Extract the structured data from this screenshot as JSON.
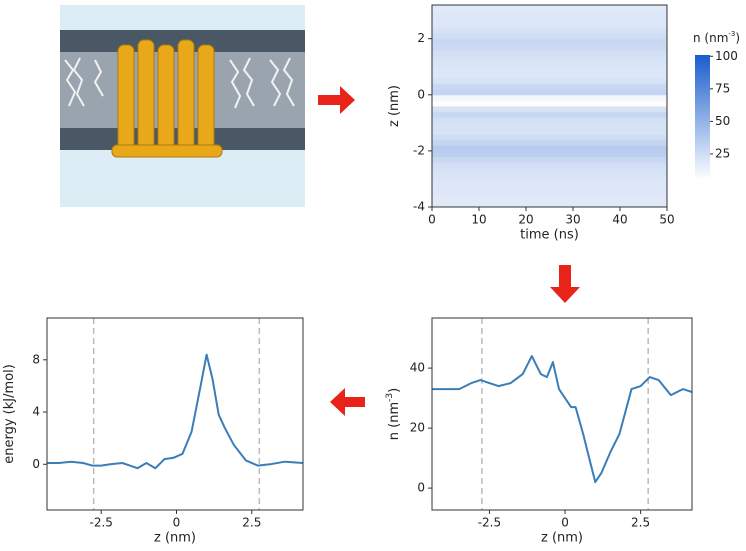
{
  "chart_data": [
    {
      "type": "heatmap",
      "x_label": "time (ns)",
      "y_label": "z (nm)",
      "xlim": [
        0,
        50
      ],
      "xticks": [
        0,
        10,
        20,
        30,
        40,
        50
      ],
      "ylim": [
        -4,
        3.2
      ],
      "yticks": [
        -4,
        -2,
        0,
        2
      ],
      "y": [
        -3.9,
        -3.7,
        -3.5,
        -3.3,
        -3.1,
        -2.9,
        -2.7,
        -2.5,
        -2.3,
        -2.1,
        -1.9,
        -1.7,
        -1.5,
        -1.3,
        -1.1,
        -0.9,
        -0.7,
        -0.5,
        -0.3,
        -0.1,
        0.1,
        0.3,
        0.5,
        0.7,
        0.9,
        1.1,
        1.3,
        1.5,
        1.7,
        1.9,
        2.1,
        2.3,
        2.5,
        2.7,
        2.9,
        3.1
      ],
      "values": [
        18,
        18,
        19,
        19,
        20,
        21,
        22,
        24,
        28,
        33,
        35,
        30,
        25,
        22,
        22,
        24,
        28,
        22,
        6,
        10,
        30,
        28,
        22,
        20,
        20,
        21,
        22,
        24,
        27,
        28,
        25,
        22,
        20,
        19,
        19,
        18
      ],
      "cmap": [
        "#ffffff",
        "#1a5ccc"
      ],
      "colorbar": {
        "label": "n (nm",
        "label_sup": "-3",
        "label_end": ")",
        "clim": [
          5,
          101
        ],
        "ticks": [
          25,
          50,
          75,
          100
        ]
      }
    },
    {
      "type": "line",
      "x_label": "z (nm)",
      "y_label": "n (nm",
      "y_label_sup": "-3",
      "y_label_end": ")",
      "xlim": [
        -4.4,
        4.2
      ],
      "xticks": [
        -2.5,
        0,
        2.5
      ],
      "ylim": [
        -7.3,
        56.7
      ],
      "yticks": [
        0,
        20,
        40
      ],
      "vlines": [
        -2.75,
        2.75
      ],
      "color": "#3a7db8",
      "x": [
        -4.4,
        -3.9,
        -3.5,
        -3.1,
        -2.8,
        -2.5,
        -2.2,
        -1.8,
        -1.4,
        -1.1,
        -0.8,
        -0.6,
        -0.4,
        -0.2,
        0,
        0.2,
        0.35,
        0.6,
        0.85,
        1.0,
        1.2,
        1.5,
        1.8,
        2.2,
        2.5,
        2.8,
        3.1,
        3.5,
        3.9,
        4.2
      ],
      "values": [
        33,
        33,
        33,
        35,
        36,
        35,
        34,
        35,
        38,
        44,
        38,
        37,
        42,
        33,
        30,
        27,
        27,
        18,
        8,
        2,
        5,
        12,
        18,
        33,
        34,
        37,
        36,
        31,
        33,
        32
      ]
    },
    {
      "type": "line",
      "x_label": "z (nm)",
      "y_label": "energy (kJ/mol)",
      "xlim": [
        -4.3,
        4.2
      ],
      "xticks": [
        -2.5,
        0,
        2.5
      ],
      "ylim": [
        -3.5,
        11.2
      ],
      "yticks": [
        0,
        4,
        8
      ],
      "vlines": [
        -2.75,
        2.75
      ],
      "color": "#3a7db8",
      "x": [
        -4.3,
        -3.9,
        -3.5,
        -3.1,
        -2.8,
        -2.5,
        -2.2,
        -1.8,
        -1.3,
        -1.0,
        -0.7,
        -0.4,
        -0.1,
        0.2,
        0.5,
        0.8,
        1.0,
        1.2,
        1.4,
        1.6,
        1.9,
        2.3,
        2.7,
        3.1,
        3.6,
        4.2
      ],
      "values": [
        0.1,
        0.1,
        0.2,
        0.1,
        -0.1,
        -0.1,
        0,
        0.1,
        -0.3,
        0.1,
        -0.3,
        0.4,
        0.5,
        0.8,
        2.5,
        6,
        8.4,
        6.5,
        3.8,
        2.8,
        1.5,
        0.3,
        -0.1,
        0,
        0.2,
        0.1
      ]
    }
  ]
}
